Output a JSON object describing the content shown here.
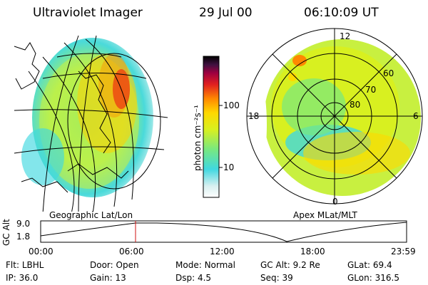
{
  "header": {
    "title": "Ultraviolet Imager",
    "date": "29 Jul 00",
    "time": "06:10:09 UT"
  },
  "left_panel": {
    "caption": "Geographic Lat/Lon"
  },
  "right_panel": {
    "caption": "Apex MLat/MLT",
    "mlt_labels": {
      "top": "12",
      "left": "18",
      "right": "6",
      "bottom": "0"
    },
    "lat_labels": [
      "60",
      "70",
      "80"
    ]
  },
  "colorbar": {
    "unit_label": "photon cm⁻²s⁻¹",
    "ticks": [
      "100",
      "10"
    ]
  },
  "orbit": {
    "axis_label": "GC Alt",
    "ytick_top": "9.0",
    "ytick_bottom": "1.8",
    "time_ticks": [
      "00:00",
      "06:00",
      "12:00",
      "18:00",
      "23:59"
    ],
    "marker_color": "#d01010"
  },
  "status": {
    "row1": [
      {
        "label": "Flt:",
        "value": "LBHL"
      },
      {
        "label": "Door:",
        "value": "Open"
      },
      {
        "label": "Mode:",
        "value": "Normal"
      },
      {
        "label": "GC Alt:",
        "value": "9.2 Re"
      },
      {
        "label": "GLat:",
        "value": "69.4"
      }
    ],
    "row2": [
      {
        "label": "IP:",
        "value": "36.0"
      },
      {
        "label": "Gain:",
        "value": "13"
      },
      {
        "label": "Dsp:",
        "value": "4.5"
      },
      {
        "label": "Seq:",
        "value": "39"
      },
      {
        "label": "GLon:",
        "value": "316.5"
      }
    ]
  },
  "colors": {
    "accent_red": "#d01010",
    "colorbar": [
      "#ffffff",
      "#d8f0f0",
      "#40d8e0",
      "#78e880",
      "#d8f020",
      "#ffd800",
      "#ff8800",
      "#e02020",
      "#a00040",
      "#401040",
      "#000000"
    ]
  }
}
